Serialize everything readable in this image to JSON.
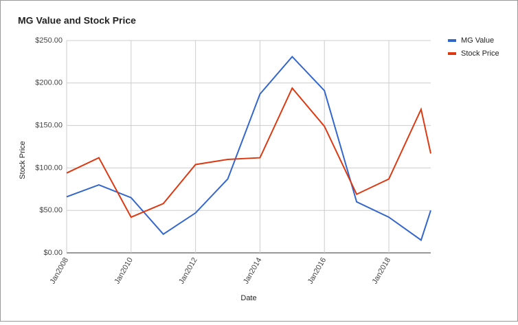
{
  "chart_data": {
    "type": "line",
    "title": "MG Value and Stock Price",
    "x_label": "Date",
    "y_label": "Stock Price",
    "x": [
      2008,
      2009,
      2010,
      2011,
      2012,
      2013,
      2014,
      2015,
      2016,
      2017,
      2018,
      2019,
      2019.3
    ],
    "series": [
      {
        "name": "MG Value",
        "color": "#3366cc",
        "values": [
          66,
          80,
          65,
          22,
          47,
          87,
          187,
          231,
          191,
          60,
          42,
          15,
          50
        ]
      },
      {
        "name": "Stock Price",
        "color": "#dc3912",
        "values": [
          94,
          112,
          42,
          58,
          104,
          110,
          112,
          194,
          149,
          69,
          87,
          169,
          117
        ]
      }
    ],
    "xlim": [
      2008,
      2019.3
    ],
    "xticks": [
      {
        "value": 2008,
        "label": "Jan2008"
      },
      {
        "value": 2010,
        "label": "Jan2010"
      },
      {
        "value": 2012,
        "label": "Jan2012"
      },
      {
        "value": 2014,
        "label": "Jan2014"
      },
      {
        "value": 2016,
        "label": "Jan2016"
      },
      {
        "value": 2018,
        "label": "Jan2018"
      }
    ],
    "ylim": [
      0,
      250
    ],
    "yticks": [
      {
        "value": 0,
        "label": "$0.00"
      },
      {
        "value": 50,
        "label": "$50.00"
      },
      {
        "value": 100,
        "label": "$100.00"
      },
      {
        "value": 150,
        "label": "$150.00"
      },
      {
        "value": 200,
        "label": "$200.00"
      },
      {
        "value": 250,
        "label": "$250.00"
      }
    ],
    "grid": true,
    "legend": "right"
  }
}
